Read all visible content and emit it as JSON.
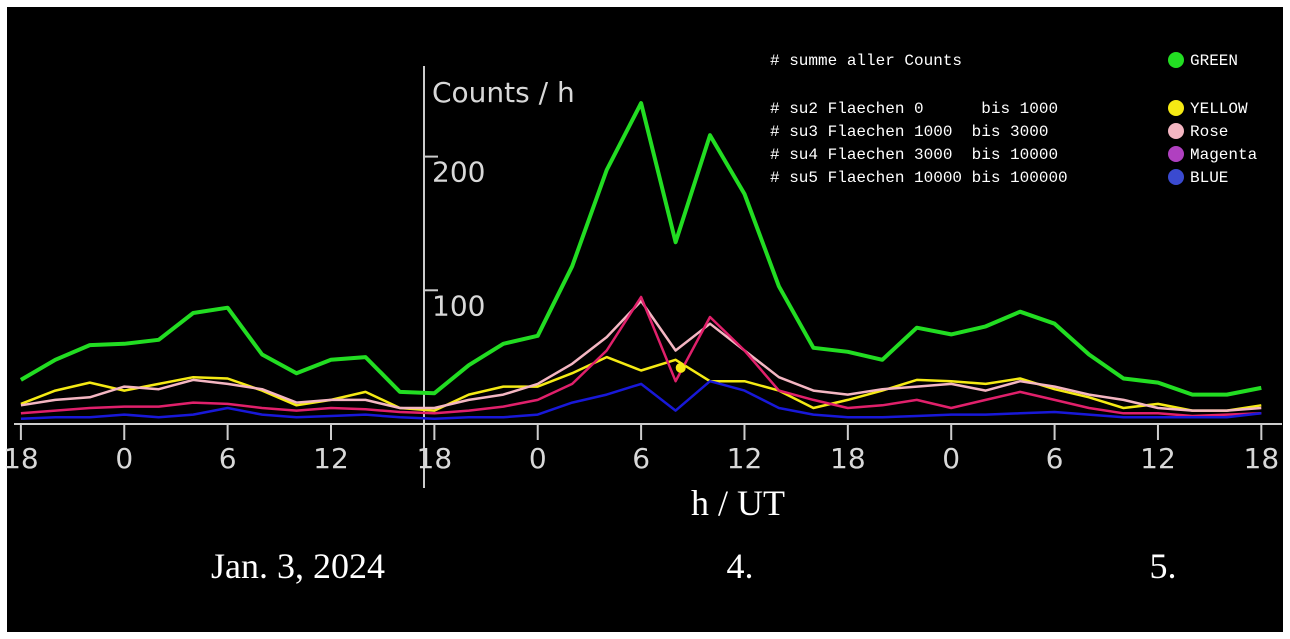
{
  "chart_data": {
    "type": "line",
    "title": "Counts / h",
    "x_label": "h / UT",
    "date_labels": [
      "Jan. 3, 2024",
      "4.",
      "5."
    ],
    "x": [
      0,
      2,
      4,
      6,
      8,
      10,
      12,
      14,
      16,
      18,
      20,
      22,
      24,
      26,
      28,
      30,
      32,
      34,
      36,
      38,
      40,
      42,
      44,
      46,
      48,
      50,
      52,
      54,
      56,
      58,
      60,
      62,
      64,
      66,
      68,
      70,
      72
    ],
    "xlim": [
      -0.4,
      73.2
    ],
    "xticks": [
      {
        "value": 0,
        "label": "18"
      },
      {
        "value": 6,
        "label": "0"
      },
      {
        "value": 12,
        "label": "6"
      },
      {
        "value": 18,
        "label": "12"
      },
      {
        "value": 24,
        "label": "18"
      },
      {
        "value": 30,
        "label": "0"
      },
      {
        "value": 36,
        "label": "6"
      },
      {
        "value": 42,
        "label": "12"
      },
      {
        "value": 48,
        "label": "18"
      },
      {
        "value": 54,
        "label": "0"
      },
      {
        "value": 60,
        "label": "6"
      },
      {
        "value": 66,
        "label": "12"
      },
      {
        "value": 72,
        "label": "18"
      }
    ],
    "ylim": [
      0,
      270
    ],
    "yticks": [
      100,
      200
    ],
    "series": [
      {
        "name": "GREEN",
        "description": "# summe aller Counts",
        "color": "#22dd22",
        "values": [
          33,
          48,
          59,
          60,
          63,
          83,
          87,
          52,
          38,
          48,
          50,
          24,
          23,
          44,
          60,
          66,
          118,
          190,
          240,
          136,
          216,
          172,
          103,
          57,
          54,
          48,
          72,
          67,
          73,
          84,
          75,
          52,
          34,
          31,
          22,
          22,
          27
        ]
      },
      {
        "name": "YELLOW",
        "description": "# su2 Flaechen 0      bis 1000",
        "color": "#f5ea14",
        "values": [
          15,
          25,
          31,
          25,
          30,
          35,
          34,
          25,
          14,
          18,
          24,
          12,
          10,
          22,
          28,
          28,
          38,
          50,
          40,
          48,
          32,
          32,
          25,
          12,
          18,
          25,
          33,
          32,
          30,
          34,
          26,
          20,
          12,
          15,
          10,
          10,
          14
        ]
      },
      {
        "name": "Rose",
        "description": "# su3 Flaechen 1000  bis 3000",
        "color": "#f4b6c2",
        "values": [
          14,
          18,
          20,
          28,
          26,
          33,
          30,
          26,
          16,
          18,
          18,
          12,
          12,
          18,
          22,
          30,
          45,
          65,
          92,
          55,
          75,
          55,
          35,
          25,
          22,
          26,
          28,
          30,
          25,
          32,
          28,
          22,
          18,
          12,
          10,
          10,
          12
        ]
      },
      {
        "name": "Magenta",
        "description": "# su4 Flaechen 3000  bis 10000",
        "color": "#e0206b",
        "legend_color": "#b040c0",
        "values": [
          8,
          10,
          12,
          13,
          13,
          16,
          15,
          12,
          10,
          12,
          11,
          9,
          8,
          10,
          13,
          18,
          30,
          55,
          95,
          32,
          80,
          55,
          25,
          18,
          12,
          14,
          18,
          12,
          18,
          24,
          18,
          12,
          8,
          8,
          6,
          7,
          8
        ]
      },
      {
        "name": "BLUE",
        "description": "# su5 Flaechen 10000 bis 100000",
        "color": "#1818d8",
        "legend_color": "#3a4ad0",
        "values": [
          4,
          5,
          5,
          7,
          5,
          7,
          12,
          7,
          5,
          6,
          7,
          5,
          4,
          5,
          5,
          7,
          16,
          22,
          30,
          10,
          32,
          25,
          12,
          7,
          5,
          5,
          6,
          7,
          7,
          8,
          9,
          7,
          5,
          5,
          5,
          5,
          8
        ]
      }
    ],
    "marker": {
      "x": 38.3,
      "y": 42,
      "color": "#f5ea14"
    }
  }
}
